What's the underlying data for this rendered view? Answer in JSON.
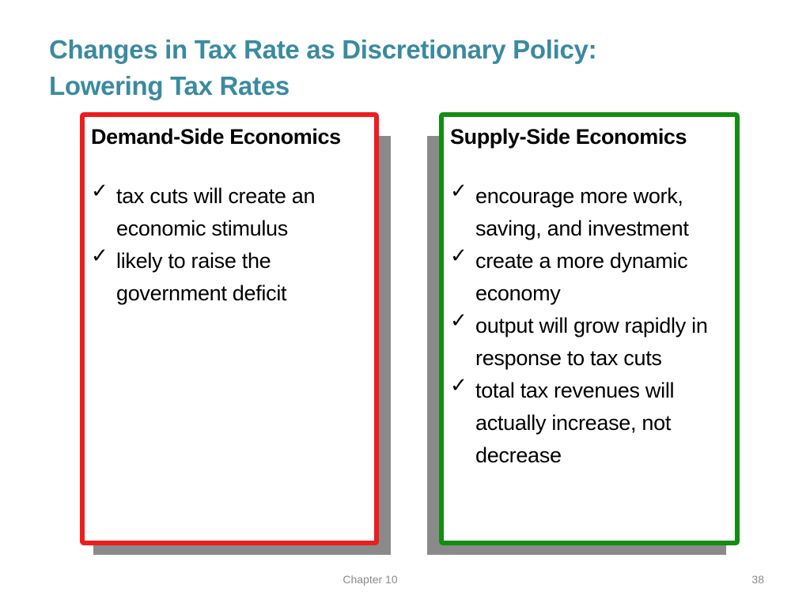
{
  "slide": {
    "title_line1": "Changes in Tax Rate as Discretionary Policy:",
    "title_line2": "Lowering Tax Rates"
  },
  "colors": {
    "title": "#3a8aa0",
    "left_border": "#ee1c1c",
    "right_border": "#138c13",
    "shadow": "#8a8a8a"
  },
  "bullet_icon": "check-mark-icon",
  "bullet_glyph": "✓",
  "left_panel": {
    "heading": "Demand-Side Economics",
    "bullets": [
      "tax cuts will create an economic stimulus",
      "likely to raise the government deficit"
    ]
  },
  "right_panel": {
    "heading": "Supply-Side Economics",
    "bullets": [
      "encourage more work, saving, and investment",
      "create a more dynamic economy",
      "output will grow rapidly in response to tax cuts",
      "total tax revenues will actually increase, not decrease"
    ]
  },
  "footer": {
    "chapter": "Chapter 10",
    "page_number": "38"
  }
}
